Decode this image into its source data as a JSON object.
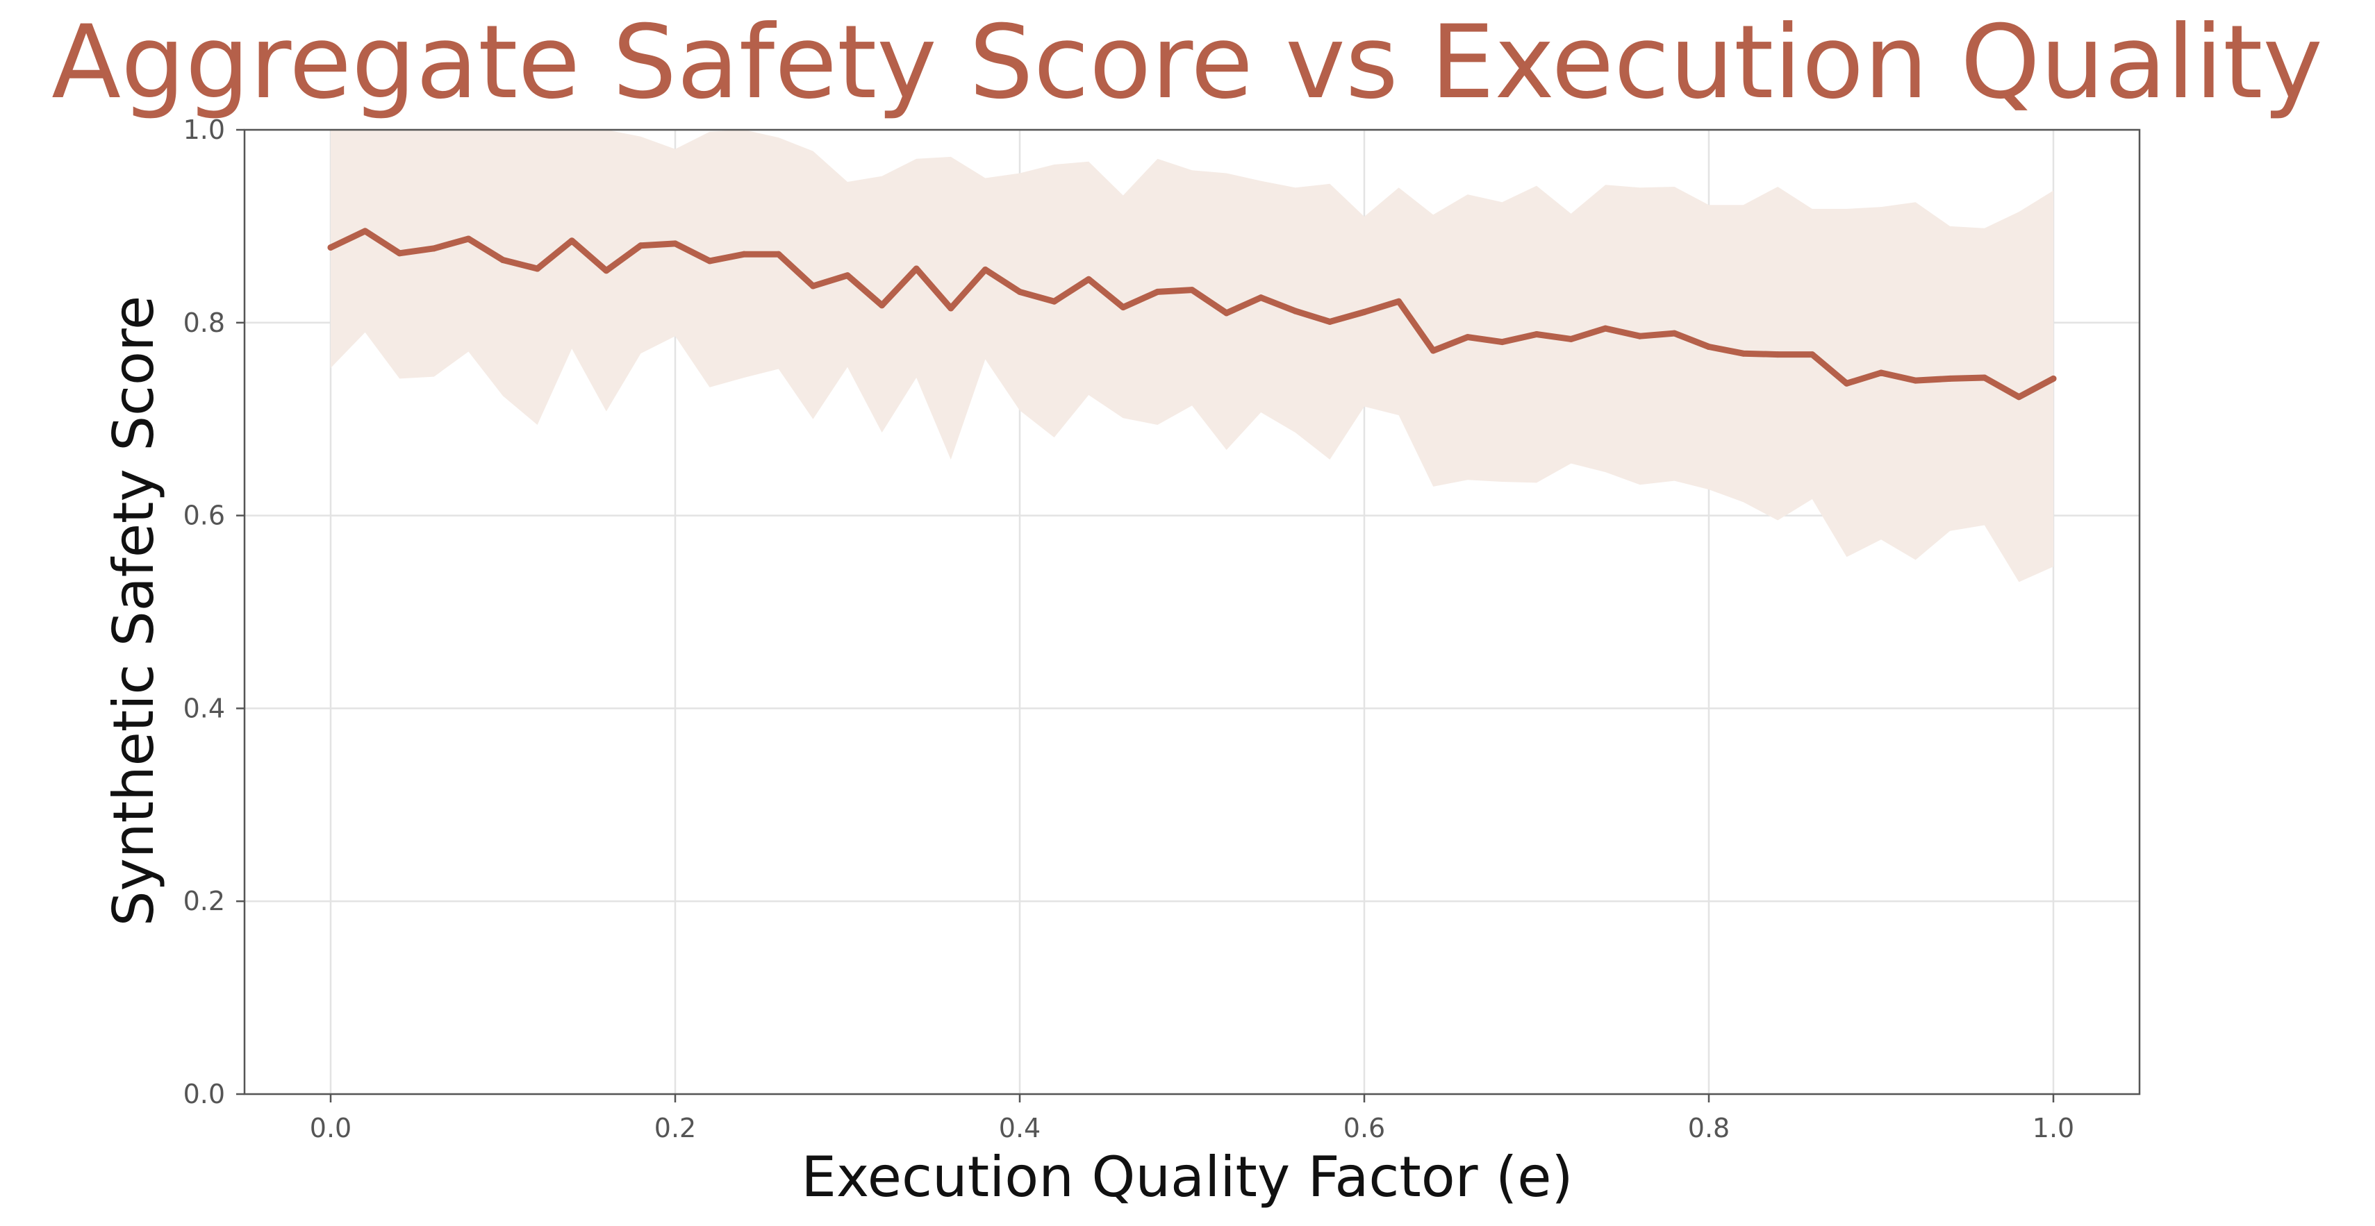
{
  "chart_data": {
    "type": "line",
    "title": "Aggregate Safety Score vs Execution Quality",
    "xlabel": "Execution Quality Factor (e)",
    "ylabel": "Synthetic Safety Score",
    "xlim": [
      -0.05,
      1.05
    ],
    "ylim": [
      0.0,
      1.0
    ],
    "xticks": [
      "0.0",
      "0.2",
      "0.4",
      "0.6",
      "0.8",
      "1.0"
    ],
    "yticks": [
      "0.0",
      "0.2",
      "0.4",
      "0.6",
      "0.8",
      "1.0"
    ],
    "grid": true,
    "legend": "none",
    "x": [
      0.0,
      0.02,
      0.04,
      0.06,
      0.08,
      0.1,
      0.12,
      0.14,
      0.16,
      0.18,
      0.2,
      0.22,
      0.24,
      0.26,
      0.28,
      0.3,
      0.32,
      0.34,
      0.36,
      0.38,
      0.4,
      0.42,
      0.44,
      0.46,
      0.48,
      0.5,
      0.52,
      0.54,
      0.56,
      0.58,
      0.6,
      0.62,
      0.64,
      0.66,
      0.68,
      0.7,
      0.72,
      0.74,
      0.76,
      0.78,
      0.8,
      0.82,
      0.84,
      0.86,
      0.88,
      0.9,
      0.92,
      0.94,
      0.96,
      0.98,
      1.0
    ],
    "series": [
      {
        "values": [
          0.878,
          0.895,
          0.872,
          0.877,
          0.887,
          0.865,
          0.856,
          0.885,
          0.854,
          0.88,
          0.882,
          0.864,
          0.871,
          0.871,
          0.838,
          0.849,
          0.818,
          0.856,
          0.815,
          0.855,
          0.832,
          0.822,
          0.845,
          0.816,
          0.832,
          0.834,
          0.81,
          0.826,
          0.812,
          0.801,
          0.811,
          0.822,
          0.771,
          0.785,
          0.78,
          0.788,
          0.783,
          0.794,
          0.786,
          0.789,
          0.775,
          0.768,
          0.767,
          0.767,
          0.737,
          0.748,
          0.74,
          0.742,
          0.743,
          0.723,
          0.742
        ],
        "upper": [
          1.0,
          1.0,
          1.0,
          1.0,
          1.0,
          1.0,
          1.0,
          1.0,
          1.0,
          0.993,
          0.98,
          0.998,
          1.0,
          0.992,
          0.978,
          0.946,
          0.952,
          0.97,
          0.972,
          0.95,
          0.955,
          0.964,
          0.967,
          0.932,
          0.97,
          0.958,
          0.955,
          0.947,
          0.94,
          0.944,
          0.91,
          0.94,
          0.912,
          0.933,
          0.925,
          0.942,
          0.913,
          0.943,
          0.94,
          0.941,
          0.922,
          0.922,
          0.941,
          0.918,
          0.918,
          0.92,
          0.925,
          0.9,
          0.898,
          0.915,
          0.937
        ],
        "lower": [
          0.753,
          0.79,
          0.742,
          0.744,
          0.77,
          0.724,
          0.694,
          0.773,
          0.708,
          0.768,
          0.786,
          0.733,
          0.743,
          0.752,
          0.7,
          0.754,
          0.686,
          0.743,
          0.658,
          0.762,
          0.709,
          0.681,
          0.725,
          0.701,
          0.694,
          0.714,
          0.668,
          0.707,
          0.686,
          0.658,
          0.713,
          0.704,
          0.63,
          0.637,
          0.635,
          0.634,
          0.654,
          0.645,
          0.632,
          0.636,
          0.627,
          0.614,
          0.595,
          0.617,
          0.557,
          0.575,
          0.554,
          0.584,
          0.59,
          0.531,
          0.547
        ]
      }
    ]
  },
  "colors": {
    "line": "#b5604a",
    "band": "#f5ebe5",
    "title": "#b5604a",
    "grid": "#e3e3e3",
    "axis": "#555555",
    "tick_text": "#555555",
    "label_text": "#111111"
  }
}
